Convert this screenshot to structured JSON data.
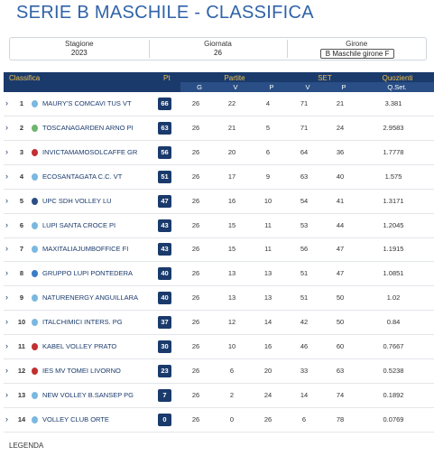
{
  "header": {
    "title": "SERIE B MASCHILE - CLASSIFICA"
  },
  "filters": [
    {
      "label": "Stagione",
      "value": "2023"
    },
    {
      "label": "Giornata",
      "value": "26"
    },
    {
      "label": "Girone",
      "value": "B Maschile girone F"
    }
  ],
  "table": {
    "group_headers": [
      "Classifica",
      "Pt",
      "Partite",
      "SET",
      "Quozienti"
    ],
    "sub_headers": [
      "G",
      "V",
      "P",
      "V",
      "P",
      "Q.Set."
    ],
    "rows": [
      [
        "1",
        "MAURY'S COMCAVI TUS VT",
        "66",
        "26",
        "22",
        "4",
        "71",
        "21",
        "3.381"
      ],
      [
        "2",
        "TOSCANAGARDEN ARNO PI",
        "63",
        "26",
        "21",
        "5",
        "71",
        "24",
        "2.9583"
      ],
      [
        "3",
        "INVICTAMAMOSOLCAFFE GR",
        "56",
        "26",
        "20",
        "6",
        "64",
        "36",
        "1.7778"
      ],
      [
        "4",
        "ECOSANTAGATA C.C. VT",
        "51",
        "26",
        "17",
        "9",
        "63",
        "40",
        "1.575"
      ],
      [
        "5",
        "UPC SDH VOLLEY LU",
        "47",
        "26",
        "16",
        "10",
        "54",
        "41",
        "1.3171"
      ],
      [
        "6",
        "LUPI SANTA CROCE PI",
        "43",
        "26",
        "15",
        "11",
        "53",
        "44",
        "1.2045"
      ],
      [
        "7",
        "MAXITALIAJUMBOFFICE FI",
        "43",
        "26",
        "15",
        "11",
        "56",
        "47",
        "1.1915"
      ],
      [
        "8",
        "GRUPPO LUPI PONTEDERA",
        "40",
        "26",
        "13",
        "13",
        "51",
        "47",
        "1.0851"
      ],
      [
        "9",
        "NATURENERGY ANGUILLARA",
        "40",
        "26",
        "13",
        "13",
        "51",
        "50",
        "1.02"
      ],
      [
        "10",
        "ITALCHIMICI INTERS. PG",
        "37",
        "26",
        "12",
        "14",
        "42",
        "50",
        "0.84"
      ],
      [
        "11",
        "KABEL VOLLEY PRATO",
        "30",
        "26",
        "10",
        "16",
        "46",
        "60",
        "0.7667"
      ],
      [
        "12",
        "IES MV TOMEI LIVORNO",
        "23",
        "26",
        "6",
        "20",
        "33",
        "63",
        "0.5238"
      ],
      [
        "13",
        "NEW VOLLEY B.SANSEP PG",
        "7",
        "26",
        "2",
        "24",
        "14",
        "74",
        "0.1892"
      ],
      [
        "14",
        "VOLLEY CLUB ORTE",
        "0",
        "26",
        "0",
        "26",
        "6",
        "78",
        "0.0769"
      ]
    ]
  },
  "footer": {
    "legend": "LEGENDA"
  }
}
